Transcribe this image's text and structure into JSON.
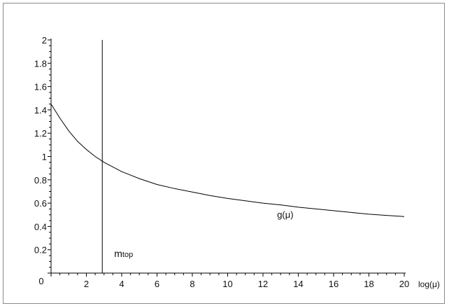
{
  "chart_data": {
    "type": "line",
    "xlabel": "log(μ)",
    "ylabel": "",
    "xlim": [
      0,
      20
    ],
    "ylim": [
      0,
      2
    ],
    "x_ticks": [
      2,
      4,
      6,
      8,
      10,
      12,
      14,
      16,
      18,
      20
    ],
    "y_ticks": [
      0.2,
      0.4,
      0.6,
      0.8,
      1,
      1.2,
      1.4,
      1.6,
      1.8,
      2
    ],
    "origin_label": "0",
    "series": [
      {
        "name": "g(μ)",
        "x": [
          0,
          0.5,
          1,
          1.5,
          2,
          2.5,
          3,
          4,
          5,
          6,
          7,
          8,
          9,
          10,
          11,
          12,
          13,
          14,
          15,
          16,
          17,
          18,
          19,
          20
        ],
        "y": [
          1.45,
          1.33,
          1.22,
          1.13,
          1.06,
          1.0,
          0.95,
          0.87,
          0.81,
          0.76,
          0.725,
          0.695,
          0.665,
          0.64,
          0.62,
          0.6,
          0.585,
          0.565,
          0.55,
          0.535,
          0.52,
          0.505,
          0.495,
          0.485
        ]
      }
    ],
    "vertical_line": {
      "x": 2.9,
      "label_main": "m",
      "label_sub": "top"
    },
    "curve_label_position": {
      "x": 12.8,
      "y": 0.475
    }
  }
}
